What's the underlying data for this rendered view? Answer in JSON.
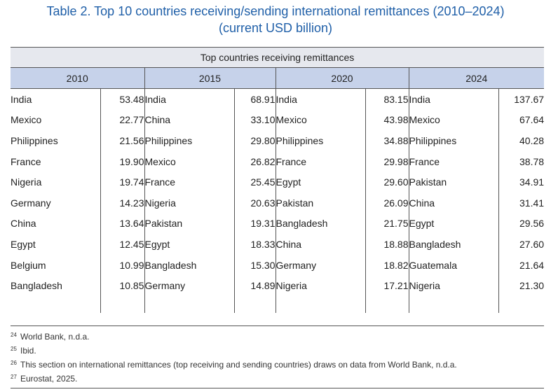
{
  "title": {
    "line1": "Table 2. Top 10 countries receiving/sending international remittances (2010–2024)",
    "line2": "(current USD billion)"
  },
  "table": {
    "section_header": "Top countries receiving remittances",
    "years": [
      "2010",
      "2015",
      "2020",
      "2024"
    ],
    "columns": [
      [
        {
          "country": "India",
          "value": "53.48"
        },
        {
          "country": "Mexico",
          "value": "22.77"
        },
        {
          "country": "Philippines",
          "value": "21.56"
        },
        {
          "country": "France",
          "value": "19.90"
        },
        {
          "country": "Nigeria",
          "value": "19.74"
        },
        {
          "country": "Germany",
          "value": "14.23"
        },
        {
          "country": "China",
          "value": "13.64"
        },
        {
          "country": "Egypt",
          "value": "12.45"
        },
        {
          "country": "Belgium",
          "value": "10.99"
        },
        {
          "country": "Bangladesh",
          "value": "10.85"
        }
      ],
      [
        {
          "country": "India",
          "value": "68.91"
        },
        {
          "country": "China",
          "value": "33.10"
        },
        {
          "country": "Philippines",
          "value": "29.80"
        },
        {
          "country": "Mexico",
          "value": "26.82"
        },
        {
          "country": "France",
          "value": "25.45"
        },
        {
          "country": "Nigeria",
          "value": "20.63"
        },
        {
          "country": "Pakistan",
          "value": "19.31"
        },
        {
          "country": "Egypt",
          "value": "18.33"
        },
        {
          "country": "Bangladesh",
          "value": "15.30"
        },
        {
          "country": "Germany",
          "value": "14.89"
        }
      ],
      [
        {
          "country": "India",
          "value": "83.15"
        },
        {
          "country": "Mexico",
          "value": "43.98"
        },
        {
          "country": "Philippines",
          "value": "34.88"
        },
        {
          "country": "France",
          "value": "29.98"
        },
        {
          "country": "Egypt",
          "value": "29.60"
        },
        {
          "country": "Pakistan",
          "value": "26.09"
        },
        {
          "country": "Bangladesh",
          "value": "21.75"
        },
        {
          "country": "China",
          "value": "18.88"
        },
        {
          "country": "Germany",
          "value": "18.82"
        },
        {
          "country": "Nigeria",
          "value": "17.21"
        }
      ],
      [
        {
          "country": "India",
          "value": "137.67"
        },
        {
          "country": "Mexico",
          "value": "67.64"
        },
        {
          "country": "Philippines",
          "value": "40.28"
        },
        {
          "country": "France",
          "value": "38.78"
        },
        {
          "country": "Pakistan",
          "value": "34.91"
        },
        {
          "country": "China",
          "value": "31.41"
        },
        {
          "country": "Egypt",
          "value": "29.56"
        },
        {
          "country": "Bangladesh",
          "value": "27.60"
        },
        {
          "country": "Guatemala",
          "value": "21.64"
        },
        {
          "country": "Nigeria",
          "value": "21.30"
        }
      ]
    ]
  },
  "footnotes": [
    {
      "num": "24",
      "text": "World Bank, n.d.a."
    },
    {
      "num": "25",
      "text": "Ibid."
    },
    {
      "num": "26",
      "text": "This section on international remittances (top receiving and sending countries) draws on data from World Bank, n.d.a."
    },
    {
      "num": "27",
      "text": "Eurostat, 2025."
    }
  ],
  "colors": {
    "title": "#1f5fa8",
    "section_header_bg": "#e6e8ee",
    "year_header_bg": "#c6d2ea"
  }
}
